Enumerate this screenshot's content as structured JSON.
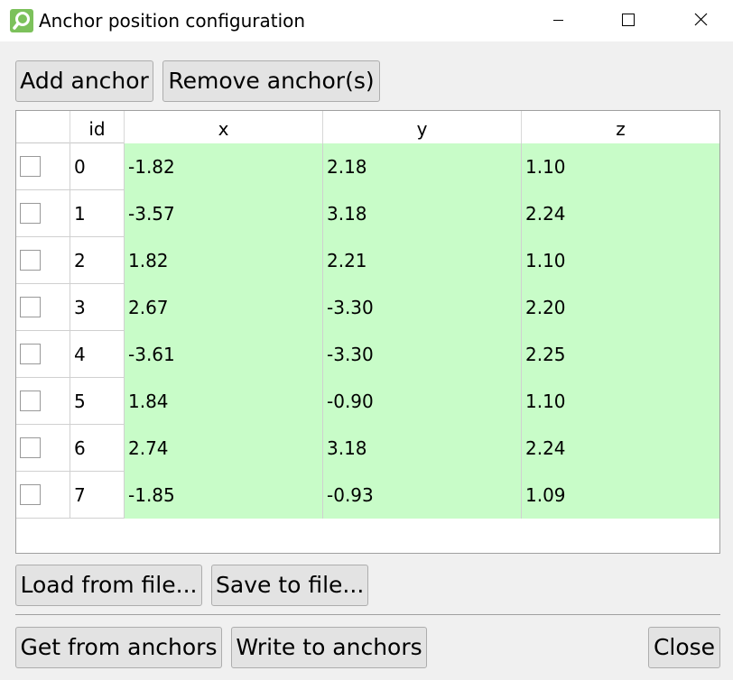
{
  "window": {
    "title": "Anchor position configuration",
    "app_icon": "app-logo-icon",
    "controls": [
      "minimize-icon",
      "maximize-icon",
      "close-icon"
    ]
  },
  "toolbar": {
    "add_label": "Add anchor",
    "remove_label": "Remove anchor(s)"
  },
  "table": {
    "columns": [
      "",
      "id",
      "x",
      "y",
      "z"
    ],
    "rows": [
      {
        "checked": false,
        "id": "0",
        "x": "-1.82",
        "y": "2.18",
        "z": "1.10"
      },
      {
        "checked": false,
        "id": "1",
        "x": "-3.57",
        "y": "3.18",
        "z": "2.24"
      },
      {
        "checked": false,
        "id": "2",
        "x": "1.82",
        "y": "2.21",
        "z": "1.10"
      },
      {
        "checked": false,
        "id": "3",
        "x": "2.67",
        "y": "-3.30",
        "z": "2.20"
      },
      {
        "checked": false,
        "id": "4",
        "x": "-3.61",
        "y": "-3.30",
        "z": "2.25"
      },
      {
        "checked": false,
        "id": "5",
        "x": "1.84",
        "y": "-0.90",
        "z": "1.10"
      },
      {
        "checked": false,
        "id": "6",
        "x": "2.74",
        "y": "3.18",
        "z": "2.24"
      },
      {
        "checked": false,
        "id": "7",
        "x": "-1.85",
        "y": "-0.93",
        "z": "1.09"
      }
    ],
    "value_cell_color": "#c8fcc8"
  },
  "file_buttons": {
    "load_label": "Load from file...",
    "save_label": "Save to file..."
  },
  "bottom_buttons": {
    "get_label": "Get from anchors",
    "write_label": "Write to anchors",
    "close_label": "Close"
  },
  "colors": {
    "accent": "#7cc15b",
    "window_bg": "#f0f0f0",
    "button_bg": "#e3e3e3"
  }
}
